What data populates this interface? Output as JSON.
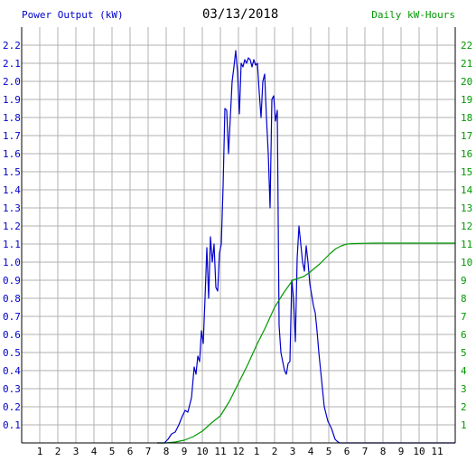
{
  "header": {
    "left_title": "Power Output (kW)",
    "date": "03/13/2018",
    "right_title": "Daily kW-Hours"
  },
  "colors": {
    "power": "#0000cc",
    "energy": "#009900",
    "grid": "#b0b0b0",
    "axis": "#000000"
  },
  "chart_data": {
    "type": "line",
    "x_tick_labels": [
      "1",
      "2",
      "3",
      "4",
      "5",
      "6",
      "7",
      "8",
      "9",
      "10",
      "11",
      "12",
      "1",
      "2",
      "3",
      "4",
      "5",
      "6",
      "7",
      "8",
      "9",
      "10",
      "11"
    ],
    "x_range_hours": [
      0,
      24
    ],
    "left_axis": {
      "label": "Power Output (kW)",
      "ylim": [
        0,
        2.3
      ],
      "tick_labels": [
        "0.1",
        "0.2",
        "0.3",
        "0.4",
        "0.5",
        "0.6",
        "0.7",
        "0.8",
        "0.9",
        "1.0",
        "1.1",
        "1.2",
        "1.3",
        "1.4",
        "1.5",
        "1.6",
        "1.7",
        "1.8",
        "1.9",
        "2.0",
        "2.1",
        "2.2"
      ]
    },
    "right_axis": {
      "label": "Daily kW-Hours",
      "ylim": [
        0,
        23
      ],
      "tick_labels": [
        "1",
        "2",
        "3",
        "4",
        "5",
        "6",
        "7",
        "8",
        "9",
        "10",
        "11",
        "12",
        "13",
        "14",
        "15",
        "16",
        "17",
        "18",
        "19",
        "20",
        "21",
        "22"
      ]
    },
    "grid": true,
    "series": [
      {
        "name": "Power Output (kW)",
        "axis": "left",
        "x": [
          7.5,
          7.9,
          8.1,
          8.3,
          8.5,
          8.7,
          8.9,
          9.05,
          9.2,
          9.4,
          9.55,
          9.65,
          9.75,
          9.85,
          9.95,
          10.05,
          10.15,
          10.25,
          10.35,
          10.45,
          10.55,
          10.65,
          10.75,
          10.85,
          10.95,
          11.05,
          11.15,
          11.25,
          11.35,
          11.45,
          11.55,
          11.65,
          11.75,
          11.85,
          11.95,
          12.05,
          12.15,
          12.25,
          12.35,
          12.45,
          12.55,
          12.65,
          12.75,
          12.85,
          12.95,
          13.05,
          13.15,
          13.25,
          13.35,
          13.45,
          13.55,
          13.65,
          13.75,
          13.85,
          13.95,
          14.05,
          14.15,
          14.25,
          14.35,
          14.45,
          14.55,
          14.65,
          14.75,
          14.85,
          14.95,
          15.05,
          15.15,
          15.25,
          15.35,
          15.45,
          15.55,
          15.65,
          15.75,
          15.85,
          15.95,
          16.05,
          16.15,
          16.25,
          16.35,
          16.45,
          16.55,
          16.65,
          16.75,
          16.85,
          16.95,
          17.05,
          17.15,
          17.25,
          17.35,
          17.45,
          17.6,
          17.8,
          18.0,
          18.2,
          18.4,
          18.6,
          18.8,
          19.0,
          19.5,
          20.0,
          24.0
        ],
        "y": [
          0.0,
          0.0,
          0.02,
          0.05,
          0.06,
          0.1,
          0.15,
          0.18,
          0.17,
          0.25,
          0.42,
          0.38,
          0.48,
          0.45,
          0.62,
          0.55,
          0.8,
          1.08,
          0.8,
          1.14,
          1.0,
          1.1,
          0.86,
          0.84,
          1.05,
          1.1,
          1.42,
          1.85,
          1.84,
          1.6,
          1.8,
          2.0,
          2.08,
          2.17,
          2.05,
          1.82,
          2.1,
          2.08,
          2.12,
          2.1,
          2.13,
          2.12,
          2.08,
          2.12,
          2.09,
          2.1,
          1.94,
          1.8,
          2.0,
          2.04,
          1.8,
          1.6,
          1.3,
          1.9,
          1.92,
          1.78,
          1.84,
          0.65,
          0.5,
          0.45,
          0.4,
          0.38,
          0.44,
          0.45,
          0.9,
          0.8,
          0.56,
          1.02,
          1.2,
          1.1,
          1.0,
          0.95,
          1.09,
          1.0,
          0.88,
          0.82,
          0.76,
          0.72,
          0.62,
          0.5,
          0.4,
          0.3,
          0.2,
          0.16,
          0.12,
          0.1,
          0.08,
          0.05,
          0.02,
          0.01,
          0.0,
          0.0,
          0.0,
          0.0,
          0.0,
          0.0,
          0.0,
          0.0,
          0.0,
          0.0,
          0.0
        ]
      },
      {
        "name": "Daily kW-Hours",
        "axis": "right",
        "x": [
          7.5,
          8.0,
          8.5,
          9.0,
          9.5,
          10.0,
          10.5,
          11.0,
          11.5,
          12.0,
          12.5,
          13.0,
          13.5,
          14.0,
          14.5,
          15.0,
          15.3,
          15.6,
          15.9,
          16.2,
          16.5,
          16.8,
          17.1,
          17.4,
          17.7,
          18.0,
          18.3,
          18.6,
          19.0,
          19.5,
          20.0,
          24.0
        ],
        "y": [
          0.0,
          0.0,
          0.05,
          0.15,
          0.35,
          0.65,
          1.1,
          1.5,
          2.3,
          3.3,
          4.3,
          5.4,
          6.4,
          7.5,
          8.3,
          9.0,
          9.1,
          9.2,
          9.4,
          9.65,
          9.9,
          10.2,
          10.5,
          10.75,
          10.9,
          11.0,
          11.02,
          11.03,
          11.04,
          11.05,
          11.05,
          11.05
        ]
      }
    ]
  }
}
